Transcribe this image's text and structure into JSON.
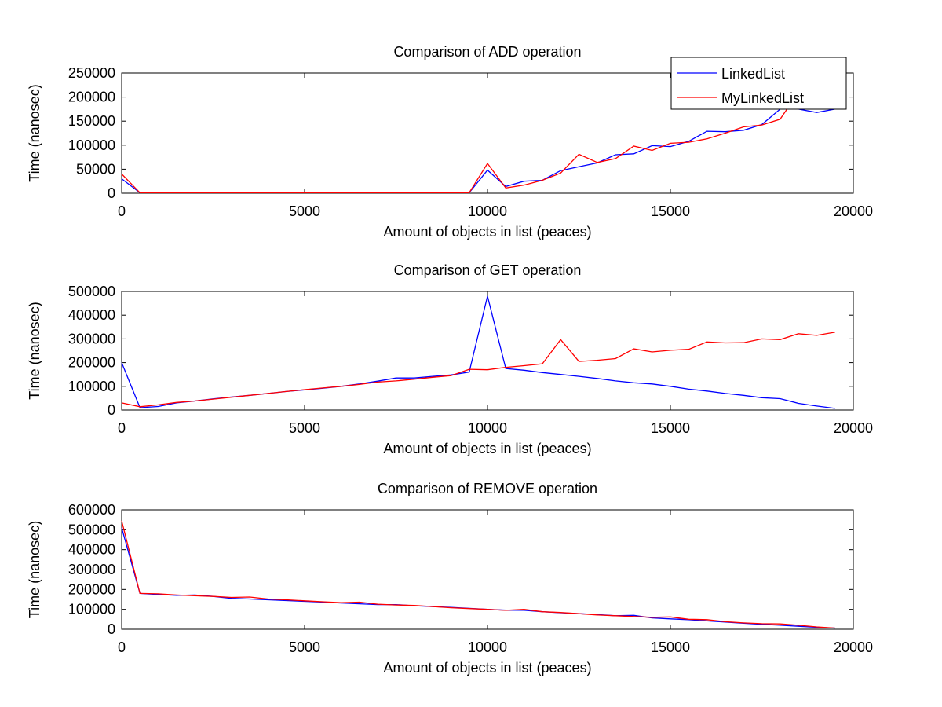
{
  "chart_data": [
    {
      "type": "line",
      "title": "Comparison of ADD operation",
      "xlabel": "Amount of objects in list (peaces)",
      "ylabel": "Time (nanosec)",
      "xlim": [
        0,
        20000
      ],
      "ylim": [
        0,
        250000
      ],
      "xticks": [
        0,
        5000,
        10000,
        15000,
        20000
      ],
      "yticks": [
        0,
        50000,
        100000,
        150000,
        200000,
        250000
      ],
      "grid": false,
      "legend": "top-right",
      "x": [
        0,
        500,
        1000,
        1500,
        2000,
        2500,
        3000,
        3500,
        4000,
        4500,
        5000,
        5500,
        6000,
        6500,
        7000,
        7500,
        8000,
        8500,
        9000,
        9500,
        10000,
        10500,
        11000,
        11500,
        12000,
        12500,
        13000,
        13500,
        14000,
        14500,
        15000,
        15500,
        16000,
        16500,
        17000,
        17500,
        18000,
        18500,
        19000,
        19500
      ],
      "series": [
        {
          "name": "LinkedList",
          "color": "#0000ff",
          "values": [
            30000,
            1000,
            1000,
            1000,
            1000,
            1000,
            1000,
            1000,
            1000,
            1000,
            1000,
            1000,
            1000,
            1000,
            1000,
            1000,
            1000,
            2000,
            1000,
            1000,
            48000,
            14000,
            25000,
            27000,
            47000,
            55000,
            63000,
            80000,
            82000,
            99000,
            97000,
            108000,
            129000,
            128000,
            131000,
            143000,
            175000,
            175000,
            168000,
            175000
          ]
        },
        {
          "name": "MyLinkedList",
          "color": "#ff0000",
          "values": [
            40000,
            1000,
            1000,
            1000,
            1000,
            1000,
            1000,
            1000,
            1000,
            1000,
            1000,
            1000,
            1000,
            1000,
            1000,
            1000,
            1000,
            1000,
            1000,
            1000,
            62000,
            11000,
            17000,
            27000,
            42000,
            81000,
            64000,
            72000,
            98000,
            89000,
            104000,
            106000,
            113000,
            125000,
            138000,
            142000,
            154000,
            210000,
            190000,
            176000
          ]
        }
      ]
    },
    {
      "type": "line",
      "title": "Comparison of GET operation",
      "xlabel": "Amount of objects in list (peaces)",
      "ylabel": "Time (nanosec)",
      "xlim": [
        0,
        20000
      ],
      "ylim": [
        0,
        500000
      ],
      "xticks": [
        0,
        5000,
        10000,
        15000,
        20000
      ],
      "yticks": [
        0,
        100000,
        200000,
        300000,
        400000,
        500000
      ],
      "grid": false,
      "x": [
        0,
        500,
        1000,
        1500,
        2000,
        2500,
        3000,
        3500,
        4000,
        4500,
        5000,
        5500,
        6000,
        6500,
        7000,
        7500,
        8000,
        8500,
        9000,
        9500,
        10000,
        10500,
        11000,
        11500,
        12000,
        12500,
        13000,
        13500,
        14000,
        14500,
        15000,
        15500,
        16000,
        16500,
        17000,
        17500,
        18000,
        18500,
        19000,
        19500
      ],
      "series": [
        {
          "name": "LinkedList",
          "color": "#0000ff",
          "values": [
            200000,
            10000,
            15000,
            30000,
            38000,
            47000,
            55000,
            62000,
            70000,
            78000,
            85000,
            92000,
            100000,
            110000,
            122000,
            135000,
            135000,
            142000,
            148000,
            160000,
            480000,
            175000,
            168000,
            158000,
            150000,
            142000,
            133000,
            123000,
            115000,
            110000,
            100000,
            88000,
            80000,
            70000,
            62000,
            52000,
            48000,
            28000,
            17000,
            7000
          ]
        },
        {
          "name": "MyLinkedList",
          "color": "#ff0000",
          "values": [
            30000,
            14000,
            22000,
            32000,
            38000,
            46000,
            54000,
            62000,
            70000,
            78000,
            86000,
            93000,
            100000,
            108000,
            118000,
            123000,
            130000,
            138000,
            145000,
            172000,
            170000,
            180000,
            187000,
            195000,
            297000,
            205000,
            210000,
            217000,
            258000,
            245000,
            252000,
            256000,
            287000,
            283000,
            284000,
            300000,
            297000,
            322000,
            315000,
            328000
          ]
        }
      ]
    },
    {
      "type": "line",
      "title": "Comparison of REMOVE operation",
      "xlabel": "Amount of objects in list (peaces)",
      "ylabel": "Time (nanosec)",
      "xlim": [
        0,
        20000
      ],
      "ylim": [
        0,
        600000
      ],
      "xticks": [
        0,
        5000,
        10000,
        15000,
        20000
      ],
      "yticks": [
        0,
        100000,
        200000,
        300000,
        400000,
        500000,
        600000
      ],
      "grid": false,
      "x": [
        0,
        500,
        1000,
        1500,
        2000,
        2500,
        3000,
        3500,
        4000,
        4500,
        5000,
        5500,
        6000,
        6500,
        7000,
        7500,
        8000,
        8500,
        9000,
        9500,
        10000,
        10500,
        11000,
        11500,
        12000,
        12500,
        13000,
        13500,
        14000,
        14500,
        15000,
        15500,
        16000,
        16500,
        17000,
        17500,
        18000,
        18500,
        19000,
        19500
      ],
      "series": [
        {
          "name": "LinkedList",
          "color": "#0000ff",
          "values": [
            510000,
            180000,
            175000,
            170000,
            172000,
            165000,
            155000,
            152000,
            148000,
            144000,
            140000,
            136000,
            132000,
            128000,
            124000,
            124000,
            118000,
            114000,
            110000,
            105000,
            100000,
            96000,
            95000,
            88000,
            83000,
            78000,
            74000,
            68000,
            70000,
            57000,
            52000,
            48000,
            42000,
            36000,
            30000,
            25000,
            20000,
            15000,
            10000,
            6000
          ]
        },
        {
          "name": "MyLinkedList",
          "color": "#ff0000",
          "values": [
            545000,
            180000,
            178000,
            172000,
            168000,
            165000,
            160000,
            162000,
            152000,
            148000,
            143000,
            138000,
            134000,
            136000,
            126000,
            122000,
            120000,
            114000,
            108000,
            104000,
            100000,
            95000,
            100000,
            88000,
            84000,
            78000,
            72000,
            68000,
            64000,
            60000,
            62000,
            50000,
            48000,
            38000,
            32000,
            28000,
            27000,
            20000,
            12000,
            6000
          ]
        }
      ]
    }
  ]
}
